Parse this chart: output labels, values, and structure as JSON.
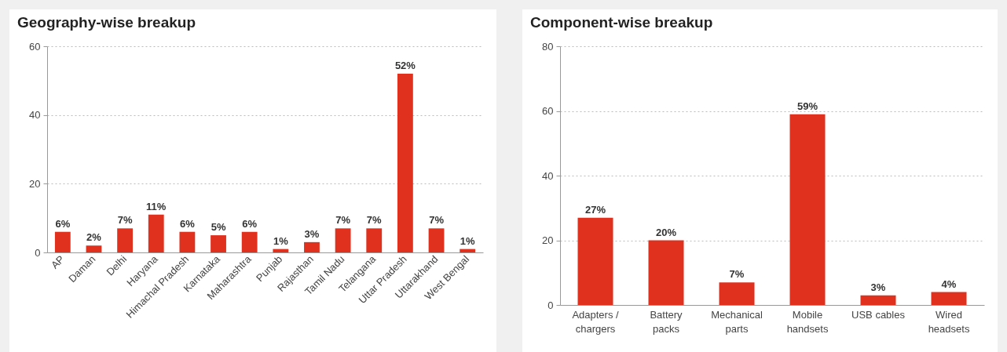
{
  "chart_data": [
    {
      "type": "bar",
      "title": "Geography-wise breakup",
      "categories": [
        "AP",
        "Daman",
        "Delhi",
        "Haryana",
        "Himachal Pradesh",
        "Karnataka",
        "Maharashtra",
        "Punjab",
        "Rajasthan",
        "Tamil Nadu",
        "Telangana",
        "Uttar Pradesh",
        "Uttarakhand",
        "West Bengal"
      ],
      "values": [
        6,
        2,
        7,
        11,
        6,
        5,
        6,
        1,
        3,
        7,
        7,
        52,
        7,
        1
      ],
      "value_labels": [
        "6%",
        "2%",
        "7%",
        "11%",
        "6%",
        "5%",
        "6%",
        "1%",
        "3%",
        "7%",
        "7%",
        "52%",
        "7%",
        "1%"
      ],
      "color": "#e0301e",
      "ylim": [
        0,
        60
      ],
      "yticks": [
        0,
        20,
        40,
        60
      ],
      "grid": "y"
    },
    {
      "type": "bar",
      "title": "Component-wise breakup",
      "categories": [
        "Adapters / chargers",
        "Battery packs",
        "Mechanical parts",
        "Mobile handsets",
        "USB cables",
        "Wired headsets"
      ],
      "values": [
        27,
        20,
        7,
        59,
        3,
        4
      ],
      "value_labels": [
        "27%",
        "20%",
        "7%",
        "59%",
        "3%",
        "4%"
      ],
      "color": "#e0301e",
      "ylim": [
        0,
        80
      ],
      "yticks": [
        0,
        20,
        40,
        60,
        80
      ],
      "grid": "y"
    }
  ]
}
